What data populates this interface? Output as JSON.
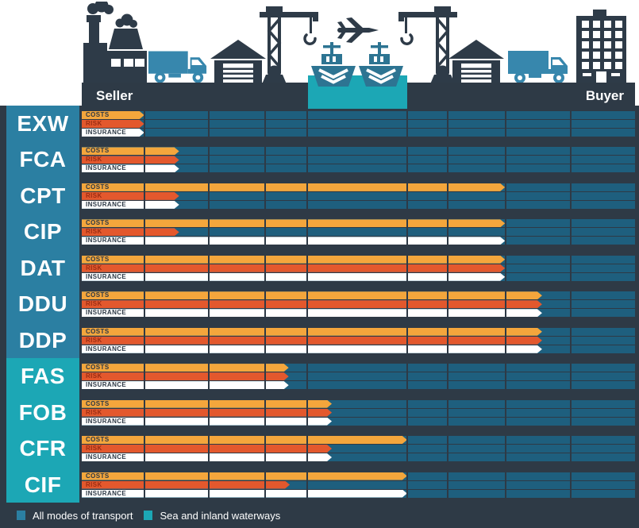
{
  "header": {
    "seller_label": "Seller",
    "buyer_label": "Buyer",
    "icons": [
      "factory-icon",
      "truck-icon",
      "warehouse-icon",
      "crane-icon",
      "ship-icon",
      "plane-icon",
      "ship-icon",
      "crane-icon",
      "warehouse-icon",
      "truck-icon",
      "building-icon"
    ]
  },
  "legend": {
    "items": [
      {
        "label": "All modes of transport",
        "color": "#2B7FA2"
      },
      {
        "label": "Sea and inland waterways",
        "color": "#1CA7B5"
      }
    ]
  },
  "colors": {
    "background_dark": "#2E3A46",
    "lane_blue": "#1E5F7E",
    "costs_orange": "#F4A63C",
    "risk_red": "#E3582D",
    "insurance_white": "#FFFFFF",
    "group_all_teal": "#2B7FA2",
    "group_sea_teal": "#1CA7B5",
    "icon_dark": "#2E3B48",
    "truck_blue": "#3787AD",
    "ship_blue": "#2D7492",
    "bar_label_text": "#2C3845",
    "risk_label_text": "#9B2D13"
  },
  "chart_data": {
    "type": "bar",
    "title": "",
    "bar_labels": [
      "COSTS",
      "RISK",
      "INSURANCE"
    ],
    "stages": [
      "factory",
      "truck",
      "warehouse",
      "crane",
      "ship",
      "crane",
      "warehouse",
      "truck",
      "building"
    ],
    "stage_boundaries_pct": [
      11.3,
      23.0,
      33.1,
      40.7,
      58.8,
      66.1,
      76.6,
      88.4
    ],
    "x_range_pct": [
      0,
      100
    ],
    "grid": true,
    "legend_position": "bottom",
    "rows": [
      {
        "code": "EXW",
        "group": "all",
        "costs_pct": 11.3,
        "risk_pct": 11.3,
        "insurance_pct": 11.3
      },
      {
        "code": "FCA",
        "group": "all",
        "costs_pct": 17.6,
        "risk_pct": 17.6,
        "insurance_pct": 17.6
      },
      {
        "code": "CPT",
        "group": "all",
        "costs_pct": 76.5,
        "risk_pct": 17.6,
        "insurance_pct": 17.6
      },
      {
        "code": "CIP",
        "group": "all",
        "costs_pct": 76.5,
        "risk_pct": 17.6,
        "insurance_pct": 76.5
      },
      {
        "code": "DAT",
        "group": "all",
        "costs_pct": 76.5,
        "risk_pct": 76.5,
        "insurance_pct": 76.5
      },
      {
        "code": "DDU",
        "group": "all",
        "costs_pct": 83.2,
        "risk_pct": 83.2,
        "insurance_pct": 83.2
      },
      {
        "code": "DDP",
        "group": "all",
        "costs_pct": 83.2,
        "risk_pct": 83.2,
        "insurance_pct": 83.2
      },
      {
        "code": "FAS",
        "group": "sea",
        "costs_pct": 37.4,
        "risk_pct": 37.4,
        "insurance_pct": 37.4
      },
      {
        "code": "FOB",
        "group": "sea",
        "costs_pct": 45.2,
        "risk_pct": 45.2,
        "insurance_pct": 45.2
      },
      {
        "code": "CFR",
        "group": "sea",
        "costs_pct": 58.8,
        "risk_pct": 45.2,
        "insurance_pct": 45.2
      },
      {
        "code": "CIF",
        "group": "sea",
        "costs_pct": 58.8,
        "risk_pct": 37.6,
        "insurance_pct": 58.8
      }
    ]
  }
}
